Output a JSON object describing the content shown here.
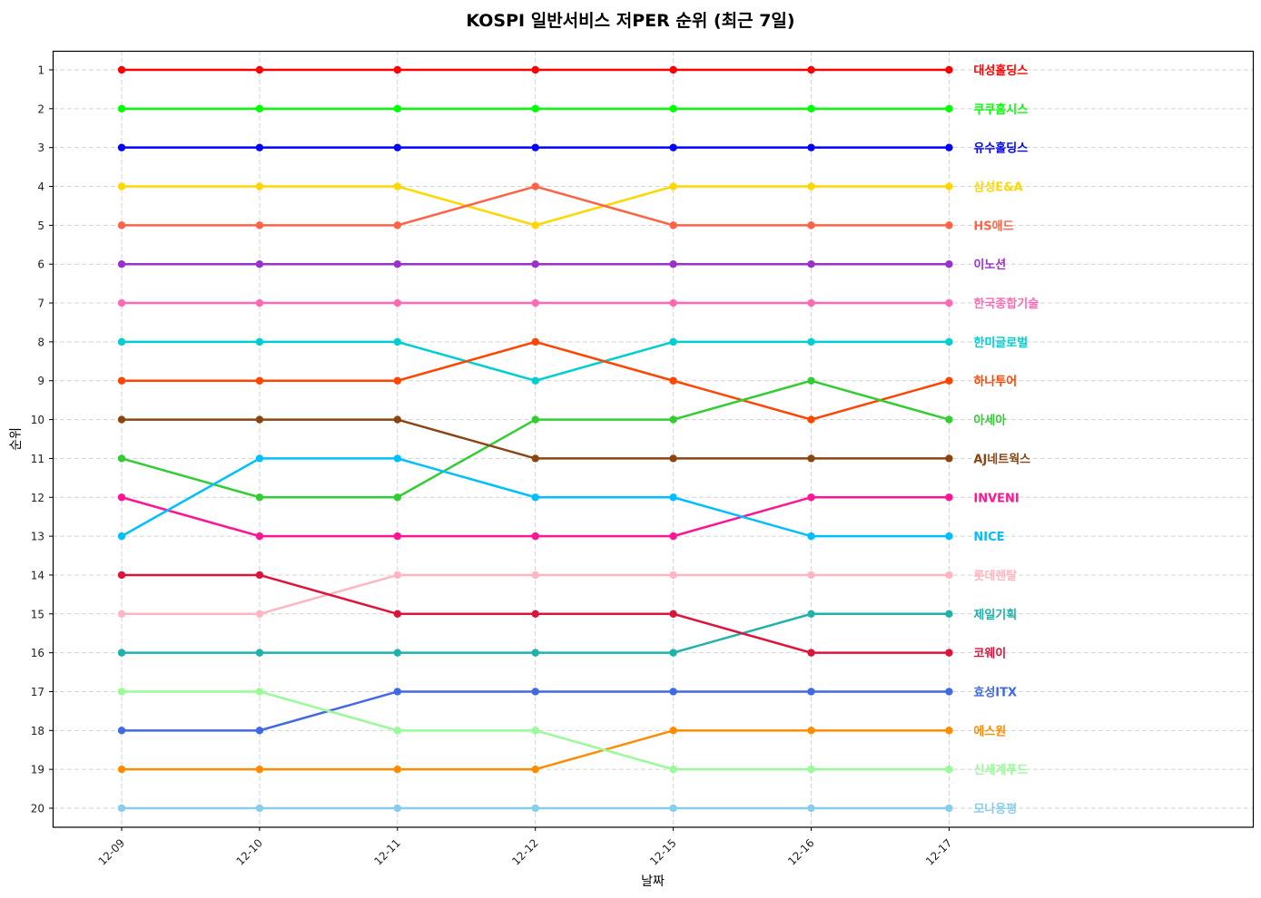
{
  "chart_data": {
    "type": "line",
    "title": "KOSPI 일반서비스 저PER 순위 (최근 7일)",
    "xlabel": "날짜",
    "ylabel": "순위",
    "x": [
      "12-09",
      "12-10",
      "12-11",
      "12-12",
      "12-15",
      "12-16",
      "12-17"
    ],
    "yticks": [
      1,
      2,
      3,
      4,
      5,
      6,
      7,
      8,
      9,
      10,
      11,
      12,
      13,
      14,
      15,
      16,
      17,
      18,
      19,
      20
    ],
    "ylim": [
      20.5,
      0.5
    ],
    "y_inverted": true,
    "grid": true,
    "legend_position": "inline-right-labels",
    "series": [
      {
        "name": "대성홀딩스",
        "color": "#ff0000",
        "values": [
          1,
          1,
          1,
          1,
          1,
          1,
          1
        ]
      },
      {
        "name": "쿠쿠홈시스",
        "color": "#00ff00",
        "values": [
          2,
          2,
          2,
          2,
          2,
          2,
          2
        ]
      },
      {
        "name": "유수홀딩스",
        "color": "#0000ff",
        "values": [
          3,
          3,
          3,
          3,
          3,
          3,
          3
        ]
      },
      {
        "name": "삼성E&A",
        "color": "#ffd700",
        "values": [
          4,
          4,
          4,
          5,
          4,
          4,
          4
        ]
      },
      {
        "name": "HS애드",
        "color": "#ff6347",
        "values": [
          5,
          5,
          5,
          4,
          5,
          5,
          5
        ]
      },
      {
        "name": "이노션",
        "color": "#9932cc",
        "values": [
          6,
          6,
          6,
          6,
          6,
          6,
          6
        ]
      },
      {
        "name": "한국종합기술",
        "color": "#ff69b4",
        "values": [
          7,
          7,
          7,
          7,
          7,
          7,
          7
        ]
      },
      {
        "name": "한미글로벌",
        "color": "#00ced1",
        "values": [
          8,
          8,
          8,
          9,
          8,
          8,
          8
        ]
      },
      {
        "name": "하나투어",
        "color": "#ff4500",
        "values": [
          9,
          9,
          9,
          8,
          9,
          10,
          9
        ]
      },
      {
        "name": "아세아",
        "color": "#32cd32",
        "values": [
          11,
          12,
          12,
          10,
          10,
          9,
          10
        ]
      },
      {
        "name": "AJ네트웍스",
        "color": "#8b4513",
        "values": [
          10,
          10,
          10,
          11,
          11,
          11,
          11
        ]
      },
      {
        "name": "INVENI",
        "color": "#ff1493",
        "values": [
          12,
          13,
          13,
          13,
          13,
          12,
          12
        ]
      },
      {
        "name": "NICE",
        "color": "#00bfff",
        "values": [
          13,
          11,
          11,
          12,
          12,
          13,
          13
        ]
      },
      {
        "name": "롯데렌탈",
        "color": "#ffb6c1",
        "values": [
          15,
          15,
          14,
          14,
          14,
          14,
          14
        ]
      },
      {
        "name": "제일기획",
        "color": "#20b2aa",
        "values": [
          16,
          16,
          16,
          16,
          16,
          15,
          15
        ]
      },
      {
        "name": "코웨이",
        "color": "#dc143c",
        "values": [
          14,
          14,
          15,
          15,
          15,
          16,
          16
        ]
      },
      {
        "name": "효성ITX",
        "color": "#4169e1",
        "values": [
          18,
          18,
          17,
          17,
          17,
          17,
          17
        ]
      },
      {
        "name": "에스원",
        "color": "#ff8c00",
        "values": [
          19,
          19,
          19,
          19,
          18,
          18,
          18
        ]
      },
      {
        "name": "신세계푸드",
        "color": "#98fb98",
        "values": [
          17,
          17,
          18,
          18,
          19,
          19,
          19
        ]
      },
      {
        "name": "모나용평",
        "color": "#87ceeb",
        "values": [
          20,
          20,
          20,
          20,
          20,
          20,
          20
        ]
      }
    ]
  }
}
